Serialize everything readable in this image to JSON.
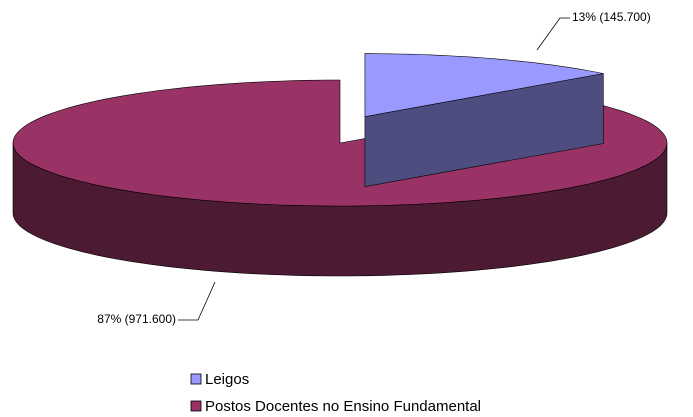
{
  "chart_data": {
    "type": "pie3d",
    "categories": [
      "Leigos",
      "Postos Docentes no Ensino Fundamental"
    ],
    "values": [
      13,
      87
    ],
    "value_labels": [
      "13% (145.700)",
      "87% (971.600)"
    ],
    "colors": [
      "#9999ff",
      "#993366"
    ],
    "legend": "bottom"
  }
}
